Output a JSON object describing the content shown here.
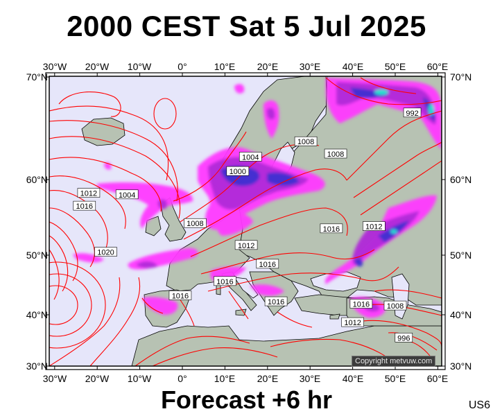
{
  "title": "2000 CEST Sat 5 Jul 2025",
  "footer": "Forecast +6 hr",
  "code": "US6",
  "copyright": "Copyright metvuw.com",
  "lon_ticks": [
    "30°W",
    "20°W",
    "10°W",
    "0°",
    "10°E",
    "20°E",
    "30°E",
    "40°E",
    "50°E",
    "60°E"
  ],
  "lat_ticks": [
    "70°N",
    "60°N",
    "50°N",
    "40°N",
    "30°N"
  ],
  "isobar_labels": [
    {
      "text": "992",
      "lon": 54,
      "lat": 66.5
    },
    {
      "text": "1008",
      "lon": 29,
      "lat": 63.7
    },
    {
      "text": "1004",
      "lon": 16,
      "lat": 62.2
    },
    {
      "text": "1000",
      "lon": 13,
      "lat": 60.8
    },
    {
      "text": "1008",
      "lon": 36,
      "lat": 62.5
    },
    {
      "text": "1004",
      "lon": -13,
      "lat": 58.0
    },
    {
      "text": "1012",
      "lon": -22,
      "lat": 58.2
    },
    {
      "text": "1016",
      "lon": -23,
      "lat": 56.5
    },
    {
      "text": "1008",
      "lon": 3,
      "lat": 54.2
    },
    {
      "text": "1012",
      "lon": 45,
      "lat": 53.8
    },
    {
      "text": "1016",
      "lon": 35,
      "lat": 53.5
    },
    {
      "text": "1012",
      "lon": 15,
      "lat": 51.3
    },
    {
      "text": "1020",
      "lon": -18,
      "lat": 50.4
    },
    {
      "text": "1016",
      "lon": 20,
      "lat": 48.5
    },
    {
      "text": "1016",
      "lon": 10,
      "lat": 45.6
    },
    {
      "text": "1016",
      "lon": -0.5,
      "lat": 43.2
    },
    {
      "text": "1016",
      "lon": 22,
      "lat": 42.2
    },
    {
      "text": "1016",
      "lon": 42,
      "lat": 41.8
    },
    {
      "text": "1008",
      "lon": 50,
      "lat": 41.5
    },
    {
      "text": "1012",
      "lon": 40,
      "lat": 38.5
    },
    {
      "text": "996",
      "lon": 52,
      "lat": 35.5
    }
  ],
  "colors": {
    "sea": "#e6e6fa",
    "land": "#b7c2b3",
    "isobar": "#ff0000",
    "rain_light": "#ff3aff",
    "rain_mid": "#b02ad8",
    "rain_heavy": "#3a2ed0",
    "rain_extreme": "#20e0d0"
  }
}
